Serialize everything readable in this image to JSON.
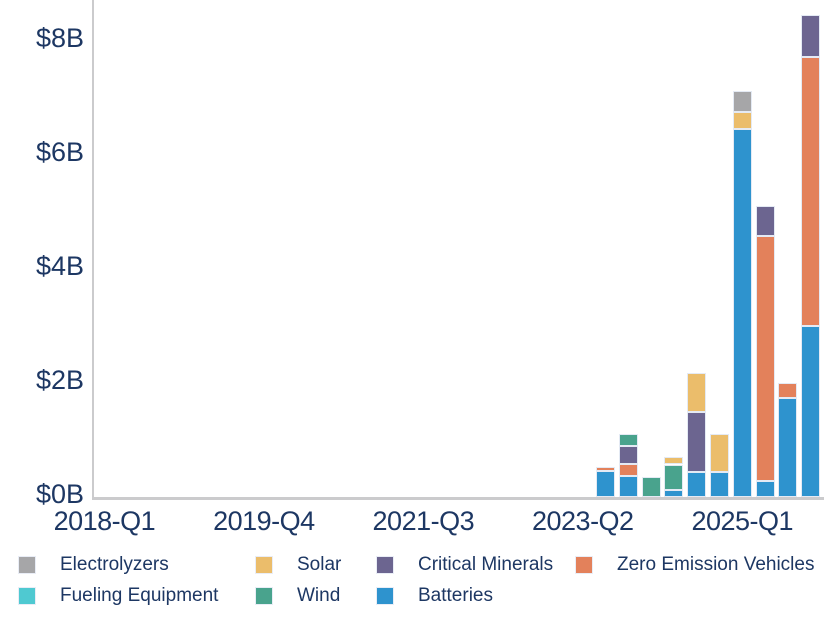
{
  "chart_data": {
    "type": "bar",
    "stacked": true,
    "title": "",
    "xlabel": "",
    "ylabel": "",
    "units": "$B",
    "ylim": [
      0,
      8.8
    ],
    "grid": false,
    "y_ticks": [
      {
        "value": 0,
        "label": "$0B"
      },
      {
        "value": 2,
        "label": "$2B"
      },
      {
        "value": 4,
        "label": "$4B"
      },
      {
        "value": 6,
        "label": "$6B"
      },
      {
        "value": 8,
        "label": "$8B"
      }
    ],
    "x_axis": {
      "quarter_slots_total": 32,
      "range_start": "2018-Q1",
      "range_end": "2025-Q4",
      "tick_labels": [
        {
          "slot": 0,
          "label": "2018-Q1"
        },
        {
          "slot": 7,
          "label": "2019-Q4"
        },
        {
          "slot": 14,
          "label": "2021-Q3"
        },
        {
          "slot": 21,
          "label": "2023-Q2"
        },
        {
          "slot": 28,
          "label": "2025-Q1"
        }
      ]
    },
    "categories": [
      "2023-Q3",
      "2023-Q4",
      "2024-Q1",
      "2024-Q2",
      "2024-Q3",
      "2024-Q4",
      "2025-Q1",
      "2025-Q2",
      "2025-Q3",
      "2025-Q4"
    ],
    "first_category_slot": 22,
    "series": [
      {
        "name": "Batteries",
        "color": "#2E93CE",
        "values": [
          0.45,
          0.37,
          0,
          0.12,
          0.44,
          0.44,
          6.45,
          0.28,
          1.74,
          3.0
        ]
      },
      {
        "name": "Zero Emission Vehicles",
        "color": "#E3815B",
        "values": [
          0.07,
          0.21,
          0,
          0,
          0,
          0,
          0,
          4.3,
          0.26,
          4.72
        ]
      },
      {
        "name": "Critical Minerals",
        "color": "#6C6590",
        "values": [
          0,
          0.32,
          0,
          0,
          1.05,
          0,
          0,
          0.53,
          0,
          0.74
        ]
      },
      {
        "name": "Wind",
        "color": "#49A38D",
        "values": [
          0,
          0.21,
          0.35,
          0.45,
          0,
          0,
          0,
          0,
          0,
          0
        ]
      },
      {
        "name": "Solar",
        "color": "#EBBD6B",
        "values": [
          0,
          0,
          0,
          0.14,
          0.68,
          0.67,
          0.3,
          0,
          0,
          0
        ]
      },
      {
        "name": "Electrolyzers",
        "color": "#A6A6A8",
        "values": [
          0,
          0,
          0,
          0,
          0,
          0,
          0.37,
          0,
          0,
          0
        ]
      },
      {
        "name": "Fueling Equipment",
        "color": "#4FC9D1",
        "values": [
          0,
          0,
          0,
          0,
          0,
          0,
          0,
          0,
          0,
          0
        ]
      }
    ],
    "legend_position": "bottom",
    "legend_rows": [
      [
        {
          "label": "Electrolyzers",
          "color": "#A6A6A8",
          "col": 0
        },
        {
          "label": "Solar",
          "color": "#EBBD6B",
          "col": 1
        },
        {
          "label": "Critical Minerals",
          "color": "#6C6590",
          "col": 2
        },
        {
          "label": "Zero Emission Vehicles",
          "color": "#E3815B",
          "col": 3
        }
      ],
      [
        {
          "label": "Fueling Equipment",
          "color": "#4FC9D1",
          "col": 0
        },
        {
          "label": "Wind",
          "color": "#49A38D",
          "col": 1
        },
        {
          "label": "Batteries",
          "color": "#2E93CE",
          "col": 2
        }
      ]
    ]
  },
  "colors": {
    "text": "#1D3763",
    "axis_line": "#CBCBCD",
    "segment_border": "#E4EAF4",
    "background": "#FFFFFF"
  }
}
